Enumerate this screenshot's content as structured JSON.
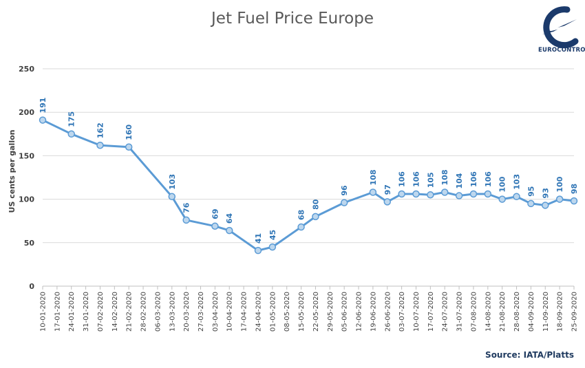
{
  "header": {
    "title": "Jet Fuel Price Europe"
  },
  "logo": {
    "text": "EUROCONTROL"
  },
  "footer": {
    "source": "Source: IATA/Platts"
  },
  "colors": {
    "line": "#5b9bd5",
    "marker_fill": "#bdd7ee",
    "label": "#2e74b5",
    "grid": "#d9d9d9"
  },
  "chart_data": {
    "type": "line",
    "title": "Jet Fuel Price Europe",
    "ylabel": "US cents per gallon",
    "xlabel": "",
    "ylim": [
      0,
      250
    ],
    "yticks": [
      0,
      50,
      100,
      150,
      200,
      250
    ],
    "grid": true,
    "categories": [
      "10-01-2020",
      "17-01-2020",
      "24-01-2020",
      "31-01-2020",
      "07-02-2020",
      "14-02-2020",
      "21-02-2020",
      "28-02-2020",
      "06-03-2020",
      "13-03-2020",
      "20-03-2020",
      "27-03-2020",
      "03-04-2020",
      "10-04-2020",
      "17-04-2020",
      "24-04-2020",
      "01-05-2020",
      "08-05-2020",
      "15-05-2020",
      "22-05-2020",
      "29-05-2020",
      "05-06-2020",
      "12-06-2020",
      "19-06-2020",
      "26-06-2020",
      "03-07-2020",
      "10-07-2020",
      "17-07-2020",
      "24-07-2020",
      "31-07-2020",
      "07-08-2020",
      "14-08-2020",
      "21-08-2020",
      "28-08-2020",
      "04-09-2020",
      "11-09-2020",
      "18-09-2020",
      "25-09-2020"
    ],
    "points": [
      {
        "x": "10-01-2020",
        "y": 191
      },
      {
        "x": "24-01-2020",
        "y": 175
      },
      {
        "x": "07-02-2020",
        "y": 162
      },
      {
        "x": "21-02-2020",
        "y": 160
      },
      {
        "x": "13-03-2020",
        "y": 103
      },
      {
        "x": "20-03-2020",
        "y": 76
      },
      {
        "x": "03-04-2020",
        "y": 69
      },
      {
        "x": "10-04-2020",
        "y": 64
      },
      {
        "x": "24-04-2020",
        "y": 41
      },
      {
        "x": "01-05-2020",
        "y": 45
      },
      {
        "x": "15-05-2020",
        "y": 68
      },
      {
        "x": "22-05-2020",
        "y": 80
      },
      {
        "x": "05-06-2020",
        "y": 96
      },
      {
        "x": "19-06-2020",
        "y": 108
      },
      {
        "x": "26-06-2020",
        "y": 97
      },
      {
        "x": "03-07-2020",
        "y": 106
      },
      {
        "x": "10-07-2020",
        "y": 106
      },
      {
        "x": "17-07-2020",
        "y": 105
      },
      {
        "x": "24-07-2020",
        "y": 108
      },
      {
        "x": "31-07-2020",
        "y": 104
      },
      {
        "x": "07-08-2020",
        "y": 106
      },
      {
        "x": "14-08-2020",
        "y": 106
      },
      {
        "x": "21-08-2020",
        "y": 100
      },
      {
        "x": "28-08-2020",
        "y": 103
      },
      {
        "x": "04-09-2020",
        "y": 95
      },
      {
        "x": "11-09-2020",
        "y": 93
      },
      {
        "x": "18-09-2020",
        "y": 100
      },
      {
        "x": "25-09-2020",
        "y": 98
      }
    ]
  }
}
